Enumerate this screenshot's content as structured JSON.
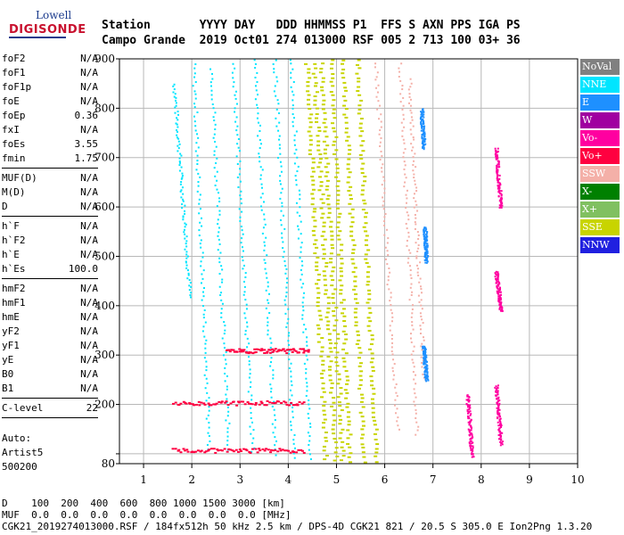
{
  "logo": {
    "line1": "Lowell",
    "line2": "DIGISONDE"
  },
  "header": {
    "row1": "Station       YYYY DAY   DDD HHMMSS P1  FFS S AXN PPS IGA PS",
    "row2": "Campo Grande  2019 Oct01 274 013000 RSF 005 2 713 100 03+ 36"
  },
  "params": {
    "group1": [
      {
        "name": "foF2",
        "value": "N/A"
      },
      {
        "name": "foF1",
        "value": "N/A"
      },
      {
        "name": "foF1p",
        "value": "N/A"
      },
      {
        "name": "foE",
        "value": "N/A"
      },
      {
        "name": "foEp",
        "value": "0.36"
      },
      {
        "name": "fxI",
        "value": "N/A"
      },
      {
        "name": "foEs",
        "value": "3.55"
      },
      {
        "name": "fmin",
        "value": "1.75"
      }
    ],
    "group2": [
      {
        "name": "MUF(D)",
        "value": "N/A"
      },
      {
        "name": "M(D)",
        "value": "N/A"
      },
      {
        "name": "D",
        "value": "N/A"
      }
    ],
    "group3": [
      {
        "name": "h`F",
        "value": "N/A"
      },
      {
        "name": "h`F2",
        "value": "N/A"
      },
      {
        "name": "h`E",
        "value": "N/A"
      },
      {
        "name": "h`Es",
        "value": "100.0"
      }
    ],
    "group4": [
      {
        "name": "hmF2",
        "value": "N/A"
      },
      {
        "name": "hmF1",
        "value": "N/A"
      },
      {
        "name": "hmE",
        "value": "N/A"
      },
      {
        "name": "yF2",
        "value": "N/A"
      },
      {
        "name": "yF1",
        "value": "N/A"
      },
      {
        "name": "yE",
        "value": "N/A"
      },
      {
        "name": "B0",
        "value": "N/A"
      },
      {
        "name": "B1",
        "value": "N/A"
      }
    ],
    "group5": [
      {
        "name": "C-level",
        "value": "22"
      }
    ]
  },
  "auto": {
    "line1": "Auto:",
    "line2": "Artist5",
    "line3": "500200"
  },
  "footer": {
    "row1": "D    100  200  400  600  800 1000 1500 3000 [km]",
    "row2": "MUF  0.0  0.0  0.0  0.0  0.0  0.0  0.0  0.0 [MHz]",
    "row3": "CGK21_2019274013000.RSF / 184fx512h 50 kHz 2.5 km / DPS-4D CGK21 821 / 20.5 S 305.0 E Ion2Png 1.3.20"
  },
  "legend": [
    {
      "label": "NoVal",
      "color": "#808080"
    },
    {
      "label": "NNE",
      "color": "#00e5ff"
    },
    {
      "label": "E",
      "color": "#1e90ff"
    },
    {
      "label": "W",
      "color": "#a000a0"
    },
    {
      "label": "Vo-",
      "color": "#ff00a0"
    },
    {
      "label": "Vo+",
      "color": "#ff0040"
    },
    {
      "label": "SSW",
      "color": "#f4b0a8"
    },
    {
      "label": "X-",
      "color": "#008000"
    },
    {
      "label": "X+",
      "color": "#80c060"
    },
    {
      "label": "SSE",
      "color": "#c8d400"
    },
    {
      "label": "NNW",
      "color": "#2020e0"
    }
  ],
  "chart_data": {
    "type": "scatter",
    "xlim": [
      0.5,
      10
    ],
    "ylim": [
      80,
      900
    ],
    "x_ticks": [
      1,
      2,
      3,
      4,
      5,
      6,
      7,
      8,
      9,
      10
    ],
    "y_ticks": [
      80,
      100,
      200,
      300,
      400,
      500,
      600,
      700,
      800,
      900
    ],
    "y_tick_labels": [
      80,
      200,
      300,
      400,
      500,
      600,
      700,
      800,
      900
    ],
    "grid": true,
    "legend_placement": "right",
    "series": [
      {
        "mode": "NNE",
        "color": "#00e5ff",
        "traces": [
          {
            "x0": 1.62,
            "x1": 1.95,
            "y0": 850,
            "y1": 420
          },
          {
            "x0": 2.02,
            "x1": 2.35,
            "y0": 900,
            "y1": 110
          },
          {
            "x0": 2.4,
            "x1": 2.75,
            "y0": 880,
            "y1": 110
          },
          {
            "x0": 2.85,
            "x1": 3.25,
            "y0": 890,
            "y1": 105
          },
          {
            "x0": 3.3,
            "x1": 3.72,
            "y0": 900,
            "y1": 100
          },
          {
            "x0": 3.7,
            "x1": 4.1,
            "y0": 900,
            "y1": 95
          },
          {
            "x0": 4.05,
            "x1": 4.45,
            "y0": 900,
            "y1": 92
          }
        ]
      },
      {
        "mode": "SSE",
        "color": "#c8d400",
        "traces": [
          {
            "x0": 4.35,
            "x1": 4.75,
            "y0": 900,
            "y1": 90
          },
          {
            "x0": 4.5,
            "x1": 4.95,
            "y0": 900,
            "y1": 88
          },
          {
            "x0": 4.65,
            "x1": 5.1,
            "y0": 900,
            "y1": 88
          },
          {
            "x0": 4.85,
            "x1": 5.25,
            "y0": 900,
            "y1": 86
          },
          {
            "x0": 5.1,
            "x1": 5.55,
            "y0": 900,
            "y1": 86
          },
          {
            "x0": 5.4,
            "x1": 5.8,
            "y0": 900,
            "y1": 86
          }
        ]
      },
      {
        "mode": "SSW",
        "color": "#f4b0a8",
        "traces": [
          {
            "x0": 5.8,
            "x1": 6.25,
            "y0": 900,
            "y1": 150
          },
          {
            "x0": 6.3,
            "x1": 6.65,
            "y0": 900,
            "y1": 140
          },
          {
            "x0": 6.5,
            "x1": 6.8,
            "y0": 860,
            "y1": 250
          }
        ]
      },
      {
        "mode": "E",
        "color": "#1e90ff",
        "traces": [
          {
            "x0": 6.75,
            "x1": 6.8,
            "y0": 800,
            "y1": 720
          },
          {
            "x0": 6.82,
            "x1": 6.85,
            "y0": 560,
            "y1": 490
          },
          {
            "x0": 6.8,
            "x1": 6.85,
            "y0": 320,
            "y1": 250
          }
        ]
      },
      {
        "mode": "Vo-",
        "color": "#ff00a0",
        "traces": [
          {
            "x0": 7.7,
            "x1": 7.8,
            "y0": 220,
            "y1": 95
          },
          {
            "x0": 8.3,
            "x1": 8.4,
            "y0": 720,
            "y1": 600
          },
          {
            "x0": 8.3,
            "x1": 8.4,
            "y0": 470,
            "y1": 390
          },
          {
            "x0": 8.3,
            "x1": 8.4,
            "y0": 240,
            "y1": 120
          }
        ]
      },
      {
        "mode": "Es",
        "color": "#ff0040",
        "traces": [
          {
            "x0": 1.6,
            "x1": 4.3,
            "y0": 108,
            "y1": 108
          },
          {
            "x0": 1.6,
            "x1": 4.3,
            "y0": 204,
            "y1": 204
          },
          {
            "x0": 2.7,
            "x1": 4.4,
            "y0": 310,
            "y1": 310
          }
        ]
      }
    ]
  }
}
